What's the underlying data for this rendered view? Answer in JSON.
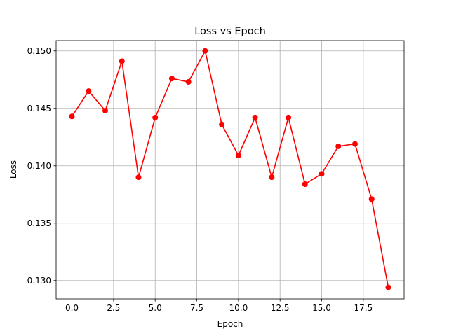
{
  "chart_data": {
    "type": "line",
    "title": "Loss vs Epoch",
    "xlabel": "Epoch",
    "ylabel": "Loss",
    "xlim": [
      -0.95,
      19.95
    ],
    "ylim": [
      0.1284,
      0.1509
    ],
    "xticks": [
      0.0,
      2.5,
      5.0,
      7.5,
      10.0,
      12.5,
      15.0,
      17.5
    ],
    "xtick_labels": [
      "0.0",
      "2.5",
      "5.0",
      "7.5",
      "10.0",
      "12.5",
      "15.0",
      "17.5"
    ],
    "yticks": [
      0.13,
      0.135,
      0.14,
      0.145,
      0.15
    ],
    "ytick_labels": [
      "0.130",
      "0.135",
      "0.140",
      "0.145",
      "0.150"
    ],
    "grid": true,
    "color": "#ff0000",
    "marker": "circle",
    "x": [
      0,
      1,
      2,
      3,
      4,
      5,
      6,
      7,
      8,
      9,
      10,
      11,
      12,
      13,
      14,
      15,
      16,
      17,
      18,
      19
    ],
    "y": [
      0.1443,
      0.1465,
      0.1448,
      0.1491,
      0.139,
      0.1442,
      0.1476,
      0.1473,
      0.15,
      0.1436,
      0.1409,
      0.1442,
      0.139,
      0.1442,
      0.1384,
      0.1393,
      0.1417,
      0.1419,
      0.1371,
      0.1294
    ]
  }
}
